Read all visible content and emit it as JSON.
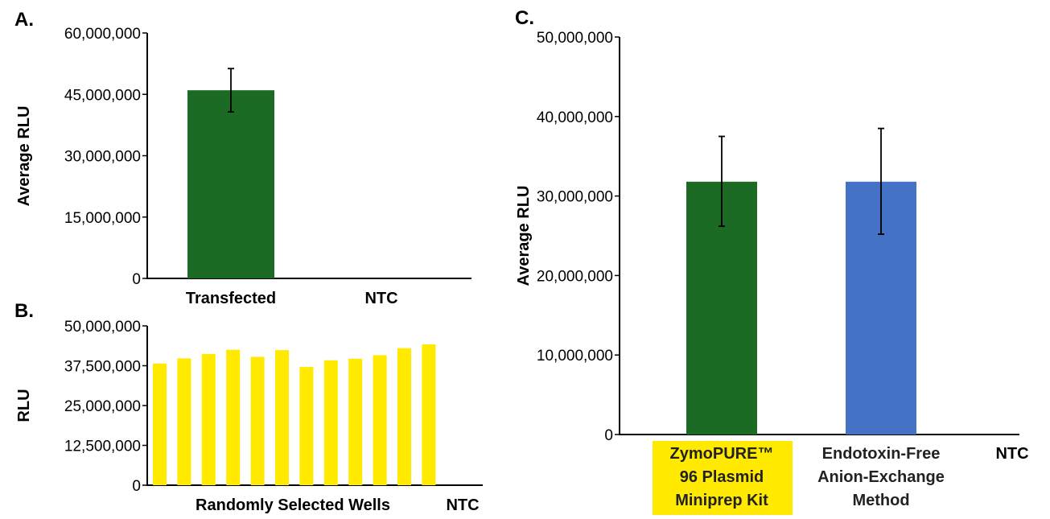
{
  "chart_data": [
    {
      "panel": "A.",
      "type": "bar",
      "ylabel": "Average RLU",
      "xlabel": "",
      "ylim": [
        0,
        60000000
      ],
      "yticks": [
        "0",
        "15,000,000",
        "30,000,000",
        "45,000,000",
        "60,000,000"
      ],
      "ytick_values": [
        0,
        15000000,
        30000000,
        45000000,
        60000000
      ],
      "categories": [
        "Transfected",
        "NTC"
      ],
      "values": [
        46000000,
        0
      ],
      "errors": [
        5300000,
        0
      ],
      "colors": [
        "#1b6b25",
        "#1b6b25"
      ],
      "grid": false
    },
    {
      "panel": "B.",
      "type": "bar",
      "ylabel": "RLU",
      "xlabel": "",
      "ylim": [
        0,
        50000000
      ],
      "yticks": [
        "0",
        "12,500,000",
        "25,000,000",
        "37,500,000",
        "50,000,000"
      ],
      "ytick_values": [
        0,
        12500000,
        25000000,
        37500000,
        50000000
      ],
      "group_labels": [
        "Randomly Selected Wells",
        "NTC"
      ],
      "values": [
        38200000,
        39800000,
        41200000,
        42500000,
        40300000,
        42400000,
        37100000,
        39200000,
        39700000,
        40800000,
        43000000,
        44200000
      ],
      "color": "#ffea00",
      "grid": false
    },
    {
      "panel": "C.",
      "type": "bar",
      "ylabel": "Average RLU",
      "xlabel": "",
      "ylim": [
        0,
        50000000
      ],
      "yticks": [
        "0",
        "10,000,000",
        "20,000,000",
        "30,000,000",
        "40,000,000",
        "50,000,000"
      ],
      "ytick_values": [
        0,
        10000000,
        20000000,
        30000000,
        40000000,
        50000000
      ],
      "categories": [
        {
          "lines": [
            "ZymoPURE™",
            "96 Plasmid",
            "Miniprep Kit"
          ],
          "highlight": "#ffea00"
        },
        {
          "lines": [
            "Endotoxin-Free",
            "Anion-Exchange",
            "Method"
          ]
        },
        {
          "lines": [
            "NTC"
          ]
        }
      ],
      "values": [
        31800000,
        31800000,
        0
      ],
      "errors_upper": [
        37500000,
        38500000,
        0
      ],
      "errors_lower": [
        26200000,
        25200000,
        0
      ],
      "colors": [
        "#1b6b25",
        "#4472c4",
        "#4472c4"
      ],
      "grid": false
    }
  ]
}
